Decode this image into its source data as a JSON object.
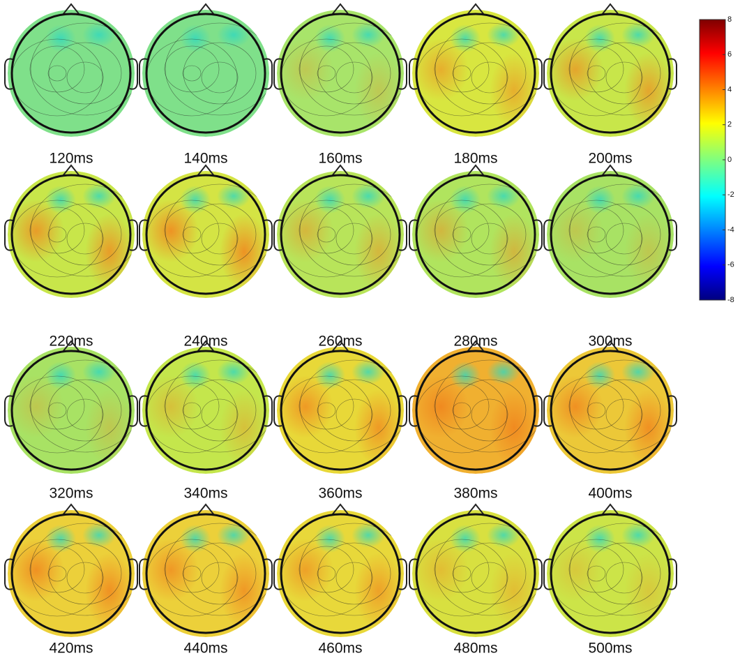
{
  "panels": [
    {
      "label": "120ms"
    },
    {
      "label": "140ms"
    },
    {
      "label": "160ms"
    },
    {
      "label": "180ms"
    },
    {
      "label": "200ms"
    },
    {
      "label": "220ms"
    },
    {
      "label": "240ms"
    },
    {
      "label": "260ms"
    },
    {
      "label": "280ms"
    },
    {
      "label": "300ms"
    },
    {
      "label": "320ms"
    },
    {
      "label": "340ms"
    },
    {
      "label": "360ms"
    },
    {
      "label": "380ms"
    },
    {
      "label": "400ms"
    },
    {
      "label": "420ms"
    },
    {
      "label": "440ms"
    },
    {
      "label": "460ms"
    },
    {
      "label": "480ms"
    },
    {
      "label": "500ms"
    }
  ],
  "colorbar": {
    "lim": [
      -8,
      8
    ],
    "ticks": [
      8,
      6,
      4,
      2,
      0,
      -2,
      -4,
      -6,
      -8
    ]
  }
}
